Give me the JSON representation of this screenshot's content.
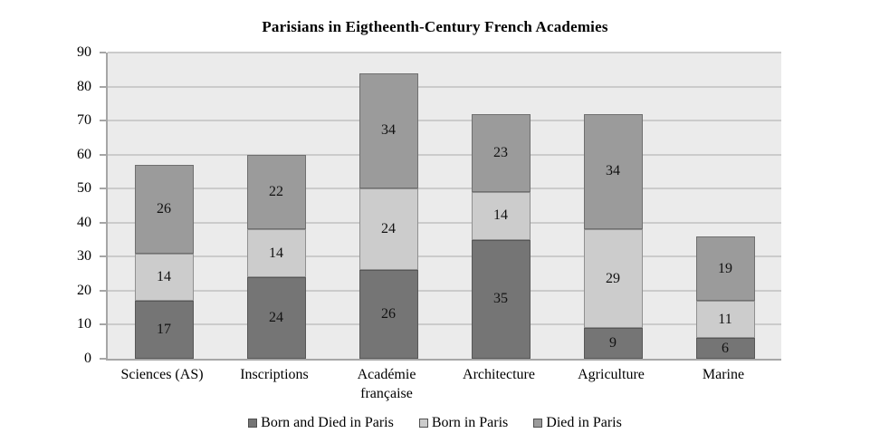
{
  "chart_data": {
    "type": "bar",
    "stacked": true,
    "title": "Parisians in Eigtheenth-Century French Academies",
    "categories": [
      "Sciences (AS)",
      "Inscriptions",
      "Académie française",
      "Architecture",
      "Agriculture",
      "Marine"
    ],
    "series": [
      {
        "name": "Born and Died in Paris",
        "color": "#757575",
        "border_color": "#575757",
        "values": [
          17,
          24,
          26,
          35,
          9,
          6
        ]
      },
      {
        "name": "Born in Paris",
        "color": "#cccccc",
        "border_color": "#909090",
        "values": [
          14,
          14,
          24,
          14,
          29,
          11
        ]
      },
      {
        "name": "Died in Paris",
        "color": "#9b9b9b",
        "border_color": "#6f6f6f",
        "values": [
          26,
          22,
          34,
          23,
          34,
          19
        ]
      }
    ],
    "totals": [
      57,
      60,
      84,
      72,
      72,
      36
    ],
    "ylim": [
      0,
      90
    ],
    "yticks": [
      "0",
      "10",
      "20",
      "30",
      "40",
      "50",
      "60",
      "70",
      "80",
      "90"
    ],
    "grid": true,
    "legend_position": "bottom",
    "show_value_labels": true
  },
  "style": {
    "background": "#ffffff",
    "plot_bg": "#ebebeb",
    "grid_color": "#cbcbcb",
    "axis_color": "#a6a6a6",
    "value_text_color": "#111111"
  }
}
